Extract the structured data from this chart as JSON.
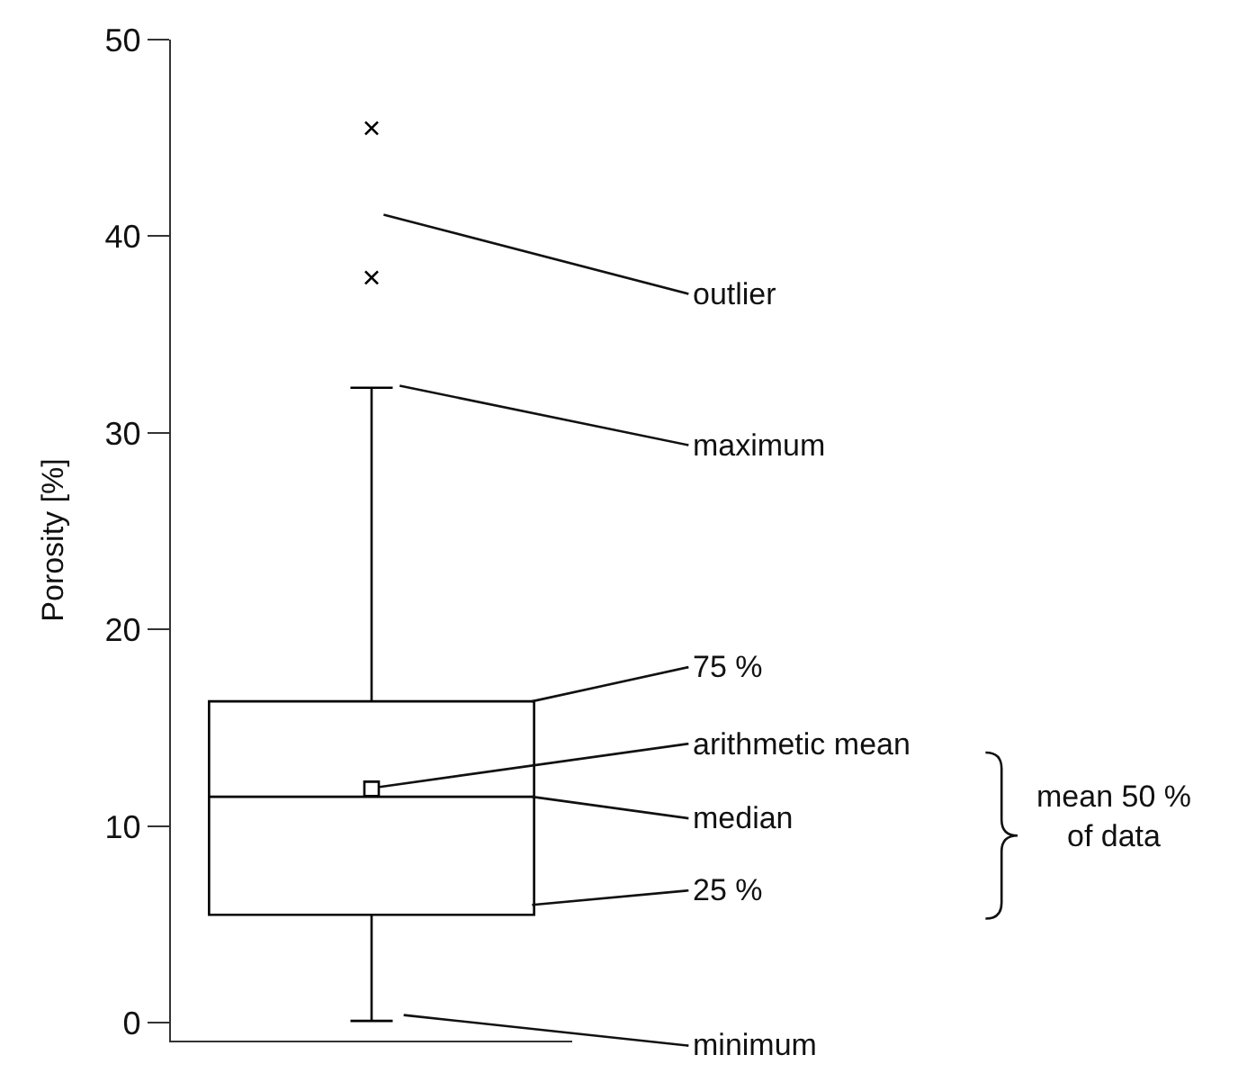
{
  "chart_data": {
    "type": "box",
    "ylabel": "Porosity [%]",
    "categories": [
      null
    ],
    "boxes": [
      {
        "low": 0.1,
        "q1": 5.5,
        "median": 11.5,
        "q3": 16.35,
        "high": 32.3,
        "mean": 11.9,
        "outliers": [
          37.9,
          45.5
        ]
      }
    ],
    "ylim": [
      -0.9,
      50
    ],
    "yticks": [
      0,
      10,
      20,
      30,
      40,
      50
    ],
    "annotations": [
      "outlier",
      "maximum",
      "75 %",
      "arithmetic mean",
      "median",
      "25 %",
      "minimum",
      "mean 50 %\nof data"
    ]
  }
}
